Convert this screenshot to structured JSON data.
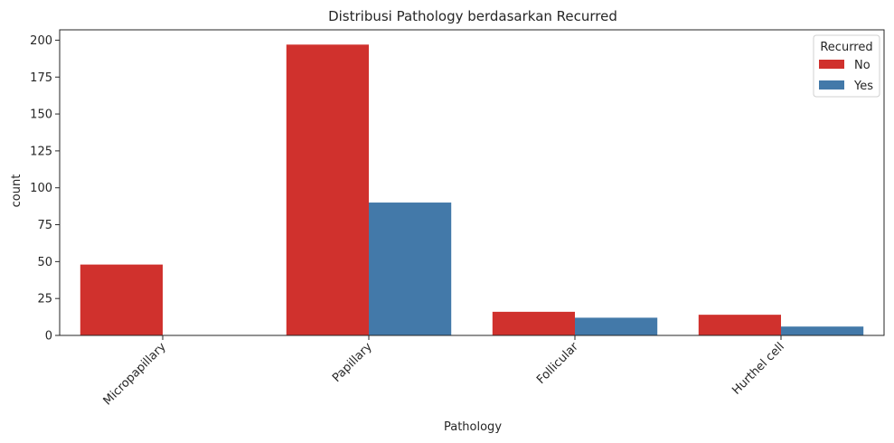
{
  "chart_data": {
    "type": "bar",
    "title": "Distribusi Pathology berdasarkan Recurred",
    "xlabel": "Pathology",
    "ylabel": "count",
    "categories": [
      "Micropapillary",
      "Papillary",
      "Follicular",
      "Hurthel cell"
    ],
    "series": [
      {
        "name": "No",
        "values": [
          48,
          197,
          16,
          14
        ],
        "color": "#d0312d"
      },
      {
        "name": "Yes",
        "values": [
          0,
          90,
          12,
          6
        ],
        "color": "#4379a9"
      }
    ],
    "ylim": [
      0,
      207
    ],
    "yticks": [
      0,
      25,
      50,
      75,
      100,
      125,
      150,
      175,
      200
    ],
    "legend": {
      "title": "Recurred",
      "position": "top-right"
    },
    "grid": false
  }
}
